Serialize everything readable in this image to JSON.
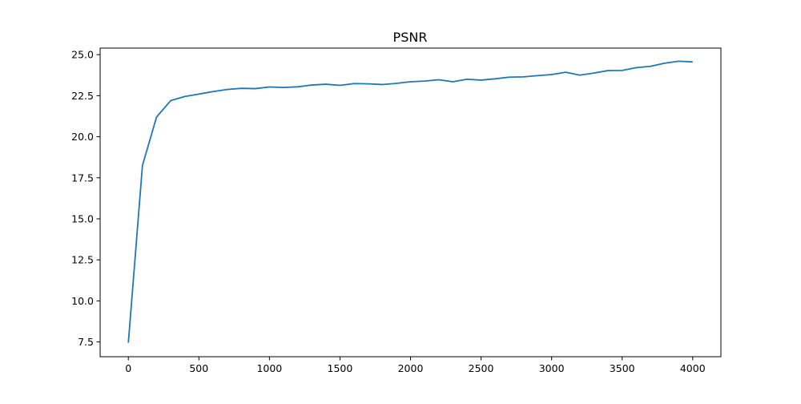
{
  "chart_data": {
    "type": "line",
    "title": "PSNR",
    "xlabel": "",
    "ylabel": "",
    "xlim": [
      -200,
      4200
    ],
    "ylim": [
      6.6,
      25.4
    ],
    "xticks": [
      0,
      500,
      1000,
      1500,
      2000,
      2500,
      3000,
      3500,
      4000
    ],
    "yticks": [
      7.5,
      10.0,
      12.5,
      15.0,
      17.5,
      20.0,
      22.5,
      25.0
    ],
    "xtick_labels": [
      "0",
      "500",
      "1000",
      "1500",
      "2000",
      "2500",
      "3000",
      "3500",
      "4000"
    ],
    "ytick_labels": [
      "7.5",
      "10.0",
      "12.5",
      "15.0",
      "17.5",
      "20.0",
      "22.5",
      "25.0"
    ],
    "grid": false,
    "legend": false,
    "series": [
      {
        "color": "#1f77b4",
        "x": [
          0,
          100,
          200,
          300,
          400,
          500,
          600,
          700,
          800,
          900,
          1000,
          1100,
          1200,
          1300,
          1400,
          1500,
          1600,
          1700,
          1800,
          1900,
          2000,
          2100,
          2200,
          2300,
          2400,
          2500,
          2600,
          2700,
          2800,
          2900,
          3000,
          3100,
          3200,
          3300,
          3400,
          3500,
          3600,
          3700,
          3800,
          3900,
          4000
        ],
        "y": [
          7.45,
          18.25,
          21.2,
          22.2,
          22.45,
          22.6,
          22.75,
          22.88,
          22.95,
          22.93,
          23.03,
          23.0,
          23.04,
          23.15,
          23.2,
          23.13,
          23.24,
          23.22,
          23.18,
          23.25,
          23.35,
          23.39,
          23.47,
          23.35,
          23.5,
          23.45,
          23.53,
          23.63,
          23.65,
          23.72,
          23.79,
          23.93,
          23.75,
          23.88,
          24.03,
          24.04,
          24.21,
          24.29,
          24.48,
          24.6,
          24.56
        ]
      }
    ]
  }
}
